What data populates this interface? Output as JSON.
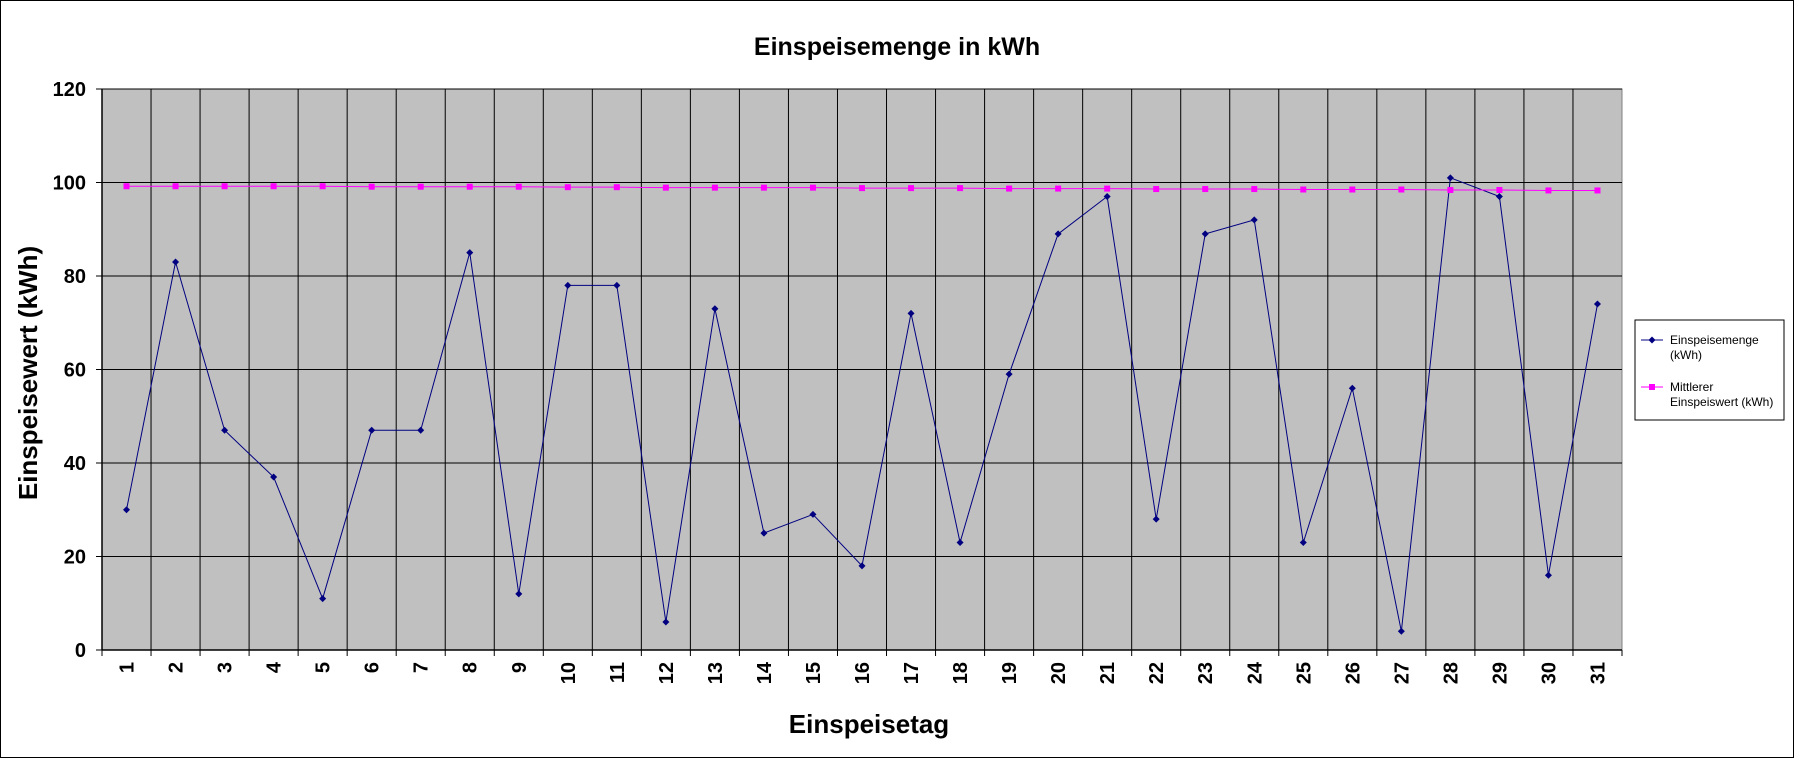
{
  "chart_data": {
    "type": "line",
    "title": "Einspeisemenge in kWh",
    "xlabel": "Einspeisetag",
    "ylabel": "Einspeisewert  (kWh)",
    "categories": [
      "1",
      "2",
      "3",
      "4",
      "5",
      "6",
      "7",
      "8",
      "9",
      "10",
      "11",
      "12",
      "13",
      "14",
      "15",
      "16",
      "17",
      "18",
      "19",
      "20",
      "21",
      "22",
      "23",
      "24",
      "25",
      "26",
      "27",
      "28",
      "29",
      "30",
      "31"
    ],
    "ylim": [
      0,
      120
    ],
    "yticks": [
      0,
      20,
      40,
      60,
      80,
      100,
      120
    ],
    "grid": true,
    "legend_position": "right",
    "plot_background": "#c0c0c0",
    "series": [
      {
        "name": "Einspeisemenge (kWh)",
        "legend_lines": [
          "Einspeisemenge",
          "(kWh)"
        ],
        "color": "#000080",
        "marker": "diamond",
        "values": [
          30,
          83,
          47,
          37,
          11,
          47,
          47,
          85,
          12,
          78,
          78,
          6,
          73,
          25,
          29,
          18,
          72,
          23,
          59,
          89,
          97,
          28,
          89,
          92,
          23,
          56,
          4,
          101,
          97,
          16,
          74
        ]
      },
      {
        "name": "Mittlerer Einspeiswert (kWh)",
        "legend_lines": [
          "Mittlerer",
          "Einspeiswert (kWh)"
        ],
        "color": "#ff00ff",
        "marker": "square",
        "values": [
          99.2,
          99.2,
          99.2,
          99.2,
          99.2,
          99.1,
          99.1,
          99.1,
          99.1,
          99.0,
          99.0,
          98.9,
          98.9,
          98.9,
          98.9,
          98.8,
          98.8,
          98.8,
          98.7,
          98.7,
          98.7,
          98.6,
          98.6,
          98.6,
          98.5,
          98.5,
          98.5,
          98.4,
          98.4,
          98.3,
          98.3
        ]
      }
    ]
  }
}
